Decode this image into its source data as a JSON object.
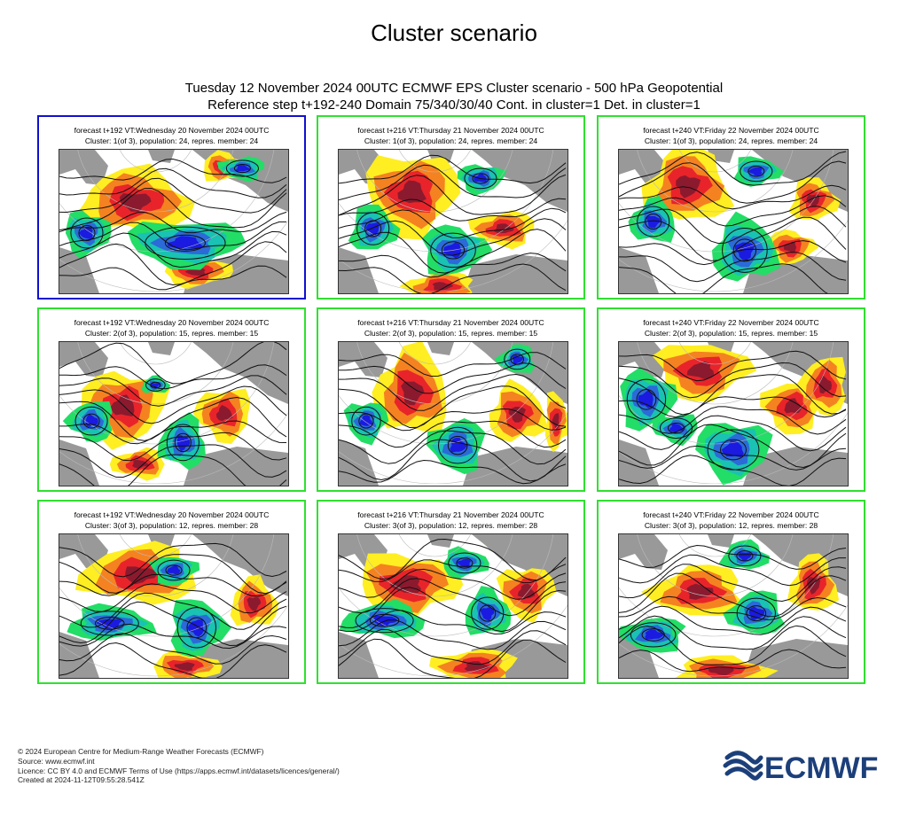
{
  "page": {
    "title": "Cluster scenario",
    "subtitle_line1": "Tuesday 12 November 2024 00UTC ECMWF EPS Cluster scenario - 500 hPa Geopotential",
    "subtitle_line2": "Reference step t+192-240 Domain 75/340/30/40 Cont. in cluster=1 Det. in cluster=1"
  },
  "colors": {
    "deterministic_border": "#1010d0",
    "control_border": "#30e030",
    "land": "#999999",
    "warm_dark": "#8b1a2e",
    "warm_mid": "#e8242a",
    "warm_light": "#f58220",
    "warm_pale": "#ffee22",
    "cold_pale": "#22dd66",
    "cold_mid": "#19c2b2",
    "cold_dark": "#2b6ad8",
    "cold_deep": "#1a1ae0"
  },
  "chart_data": [
    {
      "type": "heatmap",
      "header": "forecast t+192 VT:Wednesday 20 November 2024 00UTC",
      "cluster": "Cluster: 1(of 3), population: 24, repres. member: 24",
      "border": "blue"
    },
    {
      "type": "heatmap",
      "header": "forecast t+216 VT:Thursday 21 November 2024 00UTC",
      "cluster": "Cluster: 1(of 3), population: 24, repres. member: 24",
      "border": "green"
    },
    {
      "type": "heatmap",
      "header": "forecast t+240 VT:Friday 22 November 2024 00UTC",
      "cluster": "Cluster: 1(of 3), population: 24, repres. member: 24",
      "border": "green"
    },
    {
      "type": "heatmap",
      "header": "forecast t+192 VT:Wednesday 20 November 2024 00UTC",
      "cluster": "Cluster: 2(of 3), population: 15, repres. member: 15",
      "border": "green"
    },
    {
      "type": "heatmap",
      "header": "forecast t+216 VT:Thursday 21 November 2024 00UTC",
      "cluster": "Cluster: 2(of 3), population: 15, repres. member: 15",
      "border": "green"
    },
    {
      "type": "heatmap",
      "header": "forecast t+240 VT:Friday 22 November 2024 00UTC",
      "cluster": "Cluster: 2(of 3), population: 15, repres. member: 15",
      "border": "green"
    },
    {
      "type": "heatmap",
      "header": "forecast t+192 VT:Wednesday 20 November 2024 00UTC",
      "cluster": "Cluster: 3(of 3), population: 12, repres. member: 28",
      "border": "green"
    },
    {
      "type": "heatmap",
      "header": "forecast t+216 VT:Thursday 21 November 2024 00UTC",
      "cluster": "Cluster: 3(of 3), population: 12, repres. member: 28",
      "border": "green"
    },
    {
      "type": "heatmap",
      "header": "forecast t+240 VT:Friday 22 November 2024 00UTC",
      "cluster": "Cluster: 3(of 3), population: 12, repres. member: 28",
      "border": "green"
    }
  ],
  "footer": {
    "line1": "© 2024 European Centre for Medium-Range Weather Forecasts (ECMWF)",
    "line2": "Source: www.ecmwf.int",
    "line3": "Licence: CC BY 4.0 and ECMWF Terms of Use (https://apps.ecmwf.int/datasets/licences/general/)",
    "line4": "Created at 2024-11-12T09:55:28.541Z"
  },
  "logo": {
    "text": "ECMWF",
    "icon": "ecmwf-waves-icon"
  }
}
